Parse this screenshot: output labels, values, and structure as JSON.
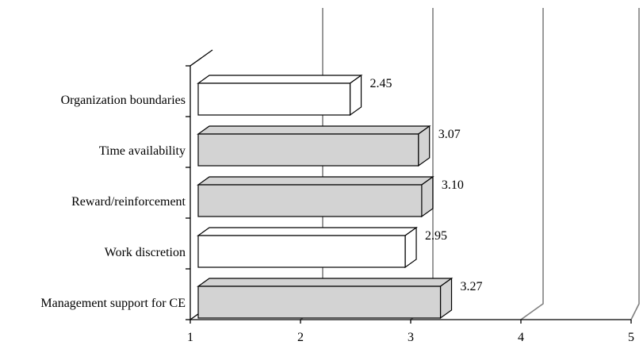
{
  "chart_data": {
    "type": "bar",
    "orientation": "horizontal",
    "style": "3d",
    "title": "",
    "xlabel": "",
    "ylabel": "",
    "xlim": [
      1,
      5
    ],
    "x_ticks": [
      "1",
      "2",
      "3",
      "4",
      "5"
    ],
    "grid": true,
    "legend": "none",
    "categories": [
      "Organization boundaries",
      "Time availability",
      "Reward/reinforcement",
      "Work discretion",
      "Management support for CE"
    ],
    "values": [
      2.45,
      3.07,
      3.1,
      2.95,
      3.27
    ],
    "value_labels": [
      "2.45",
      "3.07",
      "3.10",
      "2.95",
      "3.27"
    ],
    "bar_fills": [
      "#ffffff",
      "#d3d3d3",
      "#d3d3d3",
      "#ffffff",
      "#d3d3d3"
    ],
    "colors": {
      "gridline": "#808080",
      "axis": "#000000",
      "shaded_bar": "#d3d3d3",
      "plain_bar": "#ffffff"
    }
  }
}
